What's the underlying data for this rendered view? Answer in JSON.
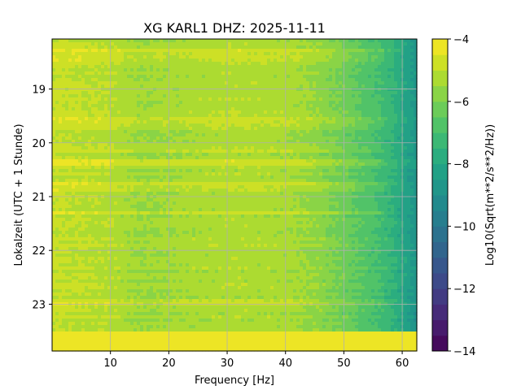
{
  "chart_data": {
    "type": "heatmap",
    "title": "XG KARL1  DHZ: 2025-11-11",
    "xlabel": "Frequency [Hz]",
    "ylabel": "Lokalzeit (UTC + 1 Stunde)",
    "colorbar_label": "Log10(Sqrt(m**2/s**2/Hz))",
    "x_range": [
      0,
      62.5
    ],
    "y_range": [
      18.07,
      23.87
    ],
    "y_inverted": true,
    "x_ticks": [
      10,
      20,
      30,
      40,
      50,
      60
    ],
    "y_ticks": [
      19,
      20,
      21,
      22,
      23
    ],
    "color_range": [
      -14,
      -4
    ],
    "color_ticks": [
      -4,
      -6,
      -8,
      -10,
      -12,
      -14
    ],
    "colormap": "viridis",
    "color_levels": 20,
    "grid": true,
    "spectral_profile": {
      "frequency_hz": [
        0,
        5,
        10,
        15,
        20,
        30,
        40,
        45,
        50,
        55,
        58,
        60,
        62.5
      ],
      "log10_amplitude": [
        -4.9,
        -5.0,
        -5.1,
        -5.5,
        -5.4,
        -5.2,
        -5.3,
        -5.6,
        -6.2,
        -6.9,
        -7.4,
        -8.0,
        -8.8
      ]
    },
    "saturated_block": {
      "from_hour": 23.5,
      "to_hour": 23.87,
      "value": -4.0
    },
    "bright_bands_hours": [
      18.3,
      18.45,
      19.6,
      19.65,
      20.15,
      20.35,
      20.8,
      20.85,
      21.3,
      22.95
    ]
  }
}
